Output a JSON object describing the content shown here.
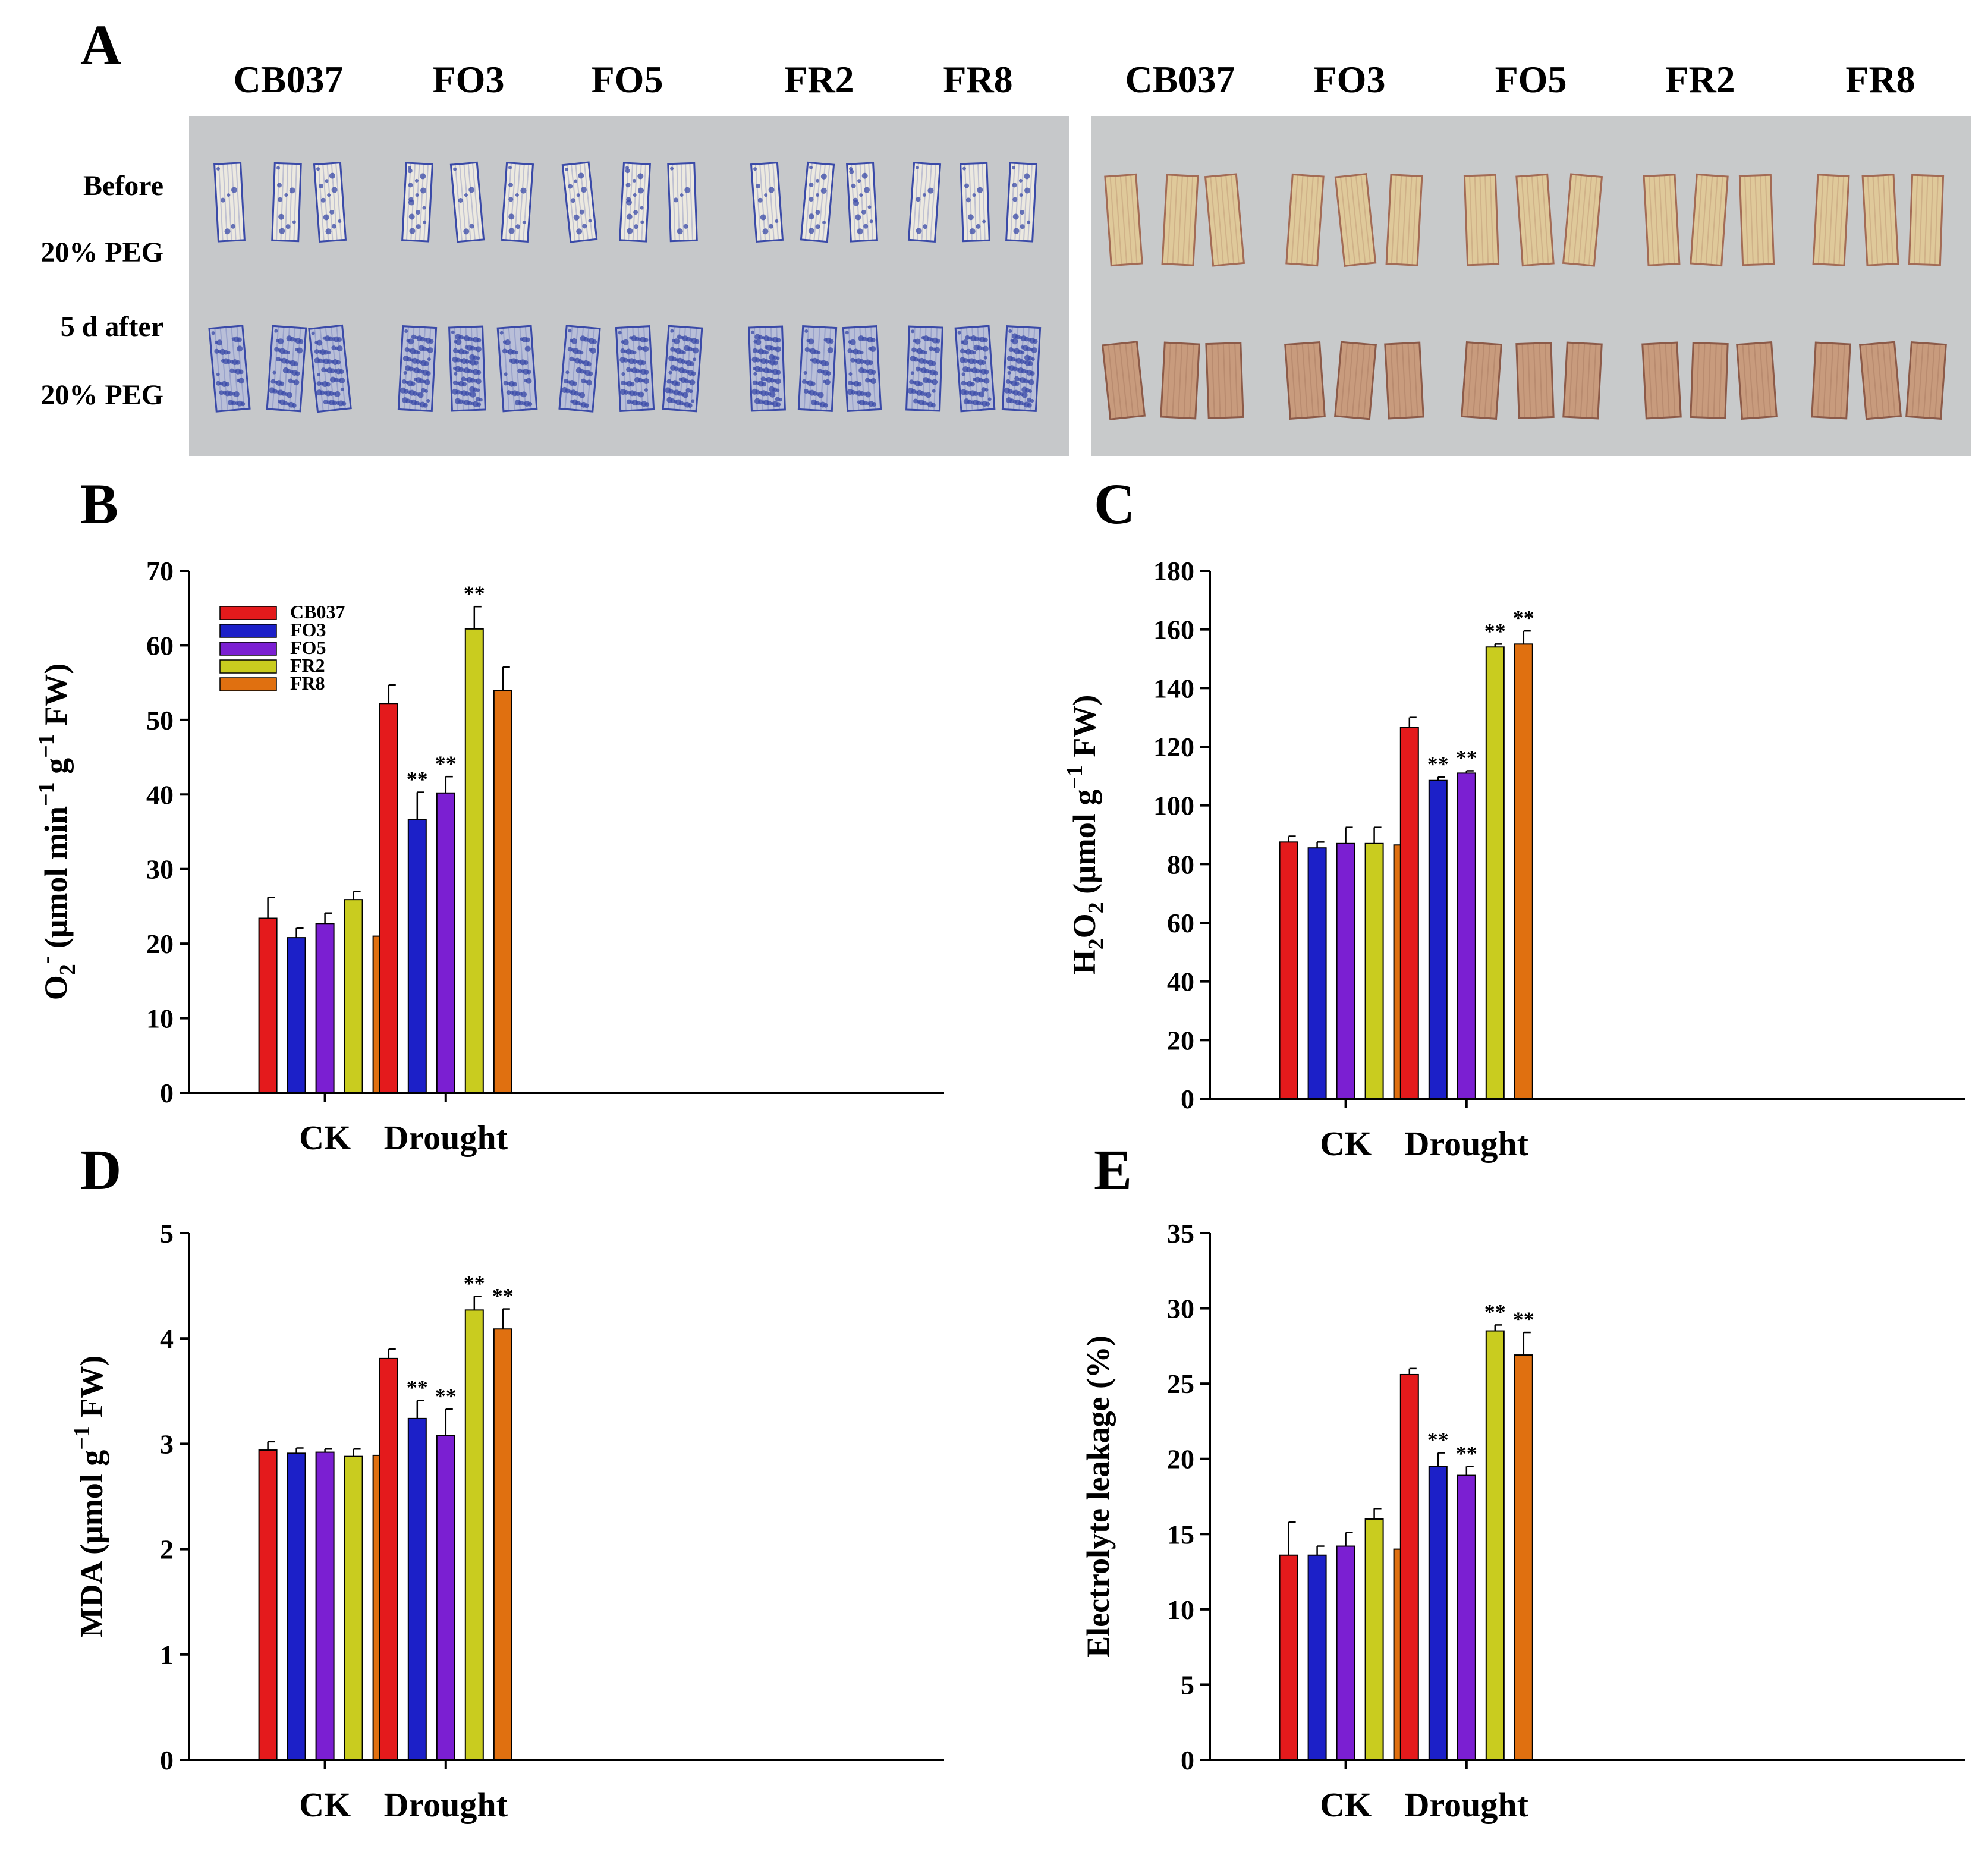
{
  "panel_a": {
    "letter": "A",
    "genotypes": [
      "CB037",
      "FO3",
      "FO5",
      "FR2",
      "FR8"
    ],
    "row_labels": [
      "Before",
      "20% PEG",
      "5 d after",
      "20% PEG"
    ],
    "colors": {
      "background": "#c6c8ca",
      "nbt_stain": "#3a4aa8",
      "nbt_leaf": "#ece9e0",
      "dab_leaf_before": "#dfc99a",
      "dab_leaf_after": "#c89b7d"
    }
  },
  "series_names": [
    "CB037",
    "FO3",
    "FO5",
    "FR2",
    "FR8"
  ],
  "series_colors": [
    "#e41a1c",
    "#1c20c8",
    "#7b1fd2",
    "#c9cc1f",
    "#e07010"
  ],
  "categories": [
    "CK",
    "Drought"
  ],
  "chart_data": [
    {
      "letter": "B",
      "type": "bar",
      "ylabel_parts": [
        "O",
        "2",
        "-",
        " (μmol min",
        "−1",
        " g",
        "−1",
        " FW)"
      ],
      "ylim": [
        0,
        70
      ],
      "yticks": [
        "0",
        "10",
        "20",
        "30",
        "40",
        "50",
        "60",
        "70"
      ],
      "legend": true,
      "legend_position": "top-left",
      "categories": [
        "CK",
        "Drought"
      ],
      "series": [
        {
          "name": "CB037",
          "values": [
            23.4,
            52.2
          ],
          "errors": [
            2.8,
            2.5
          ],
          "sig": [
            "",
            ""
          ]
        },
        {
          "name": "FO3",
          "values": [
            20.8,
            36.6
          ],
          "errors": [
            1.3,
            3.7
          ],
          "sig": [
            "",
            "**"
          ]
        },
        {
          "name": "FO5",
          "values": [
            22.7,
            40.2
          ],
          "errors": [
            1.4,
            2.2
          ],
          "sig": [
            "",
            "**"
          ]
        },
        {
          "name": "FR2",
          "values": [
            25.9,
            62.2
          ],
          "errors": [
            1.1,
            3.0
          ],
          "sig": [
            "",
            "**"
          ]
        },
        {
          "name": "FR8",
          "values": [
            21.0,
            53.9
          ],
          "errors": [
            2.4,
            3.2
          ],
          "sig": [
            "",
            ""
          ]
        }
      ]
    },
    {
      "letter": "C",
      "type": "bar",
      "ylabel_parts": [
        "H",
        "2",
        "",
        "O",
        "2",
        "",
        " (μmol g",
        "−1",
        " FW)"
      ],
      "ylim": [
        0,
        180
      ],
      "yticks": [
        "0",
        "20",
        "40",
        "60",
        "80",
        "100",
        "120",
        "140",
        "160",
        "180"
      ],
      "legend": false,
      "categories": [
        "CK",
        "Drought"
      ],
      "series": [
        {
          "name": "CB037",
          "values": [
            87.5,
            126.5
          ],
          "errors": [
            2.0,
            3.5
          ],
          "sig": [
            "",
            ""
          ]
        },
        {
          "name": "FO3",
          "values": [
            85.5,
            108.5
          ],
          "errors": [
            2.0,
            1.2
          ],
          "sig": [
            "",
            "**"
          ]
        },
        {
          "name": "FO5",
          "values": [
            87.0,
            111.0
          ],
          "errors": [
            5.5,
            0.8
          ],
          "sig": [
            "",
            "**"
          ]
        },
        {
          "name": "FR2",
          "values": [
            87.0,
            154.0
          ],
          "errors": [
            5.5,
            1.0
          ],
          "sig": [
            "",
            "**"
          ]
        },
        {
          "name": "FR8",
          "values": [
            86.5,
            155.0
          ],
          "errors": [
            1.5,
            4.5
          ],
          "sig": [
            "",
            "**"
          ]
        }
      ]
    },
    {
      "letter": "D",
      "type": "bar",
      "ylabel_parts": [
        "MDA (μmol g",
        "−1",
        " FW)"
      ],
      "ylim": [
        0,
        5
      ],
      "yticks": [
        "0",
        "1",
        "2",
        "3",
        "4",
        "5"
      ],
      "legend": false,
      "categories": [
        "CK",
        "Drought"
      ],
      "series": [
        {
          "name": "CB037",
          "values": [
            2.94,
            3.81
          ],
          "errors": [
            0.08,
            0.09
          ],
          "sig": [
            "",
            ""
          ]
        },
        {
          "name": "FO3",
          "values": [
            2.91,
            3.24
          ],
          "errors": [
            0.05,
            0.17
          ],
          "sig": [
            "",
            "**"
          ]
        },
        {
          "name": "FO5",
          "values": [
            2.92,
            3.08
          ],
          "errors": [
            0.03,
            0.25
          ],
          "sig": [
            "",
            "**"
          ]
        },
        {
          "name": "FR2",
          "values": [
            2.88,
            4.27
          ],
          "errors": [
            0.07,
            0.13
          ],
          "sig": [
            "",
            "**"
          ]
        },
        {
          "name": "FR8",
          "values": [
            2.89,
            4.09
          ],
          "errors": [
            0.06,
            0.19
          ],
          "sig": [
            "",
            "**"
          ]
        }
      ]
    },
    {
      "letter": "E",
      "type": "bar",
      "ylabel_parts": [
        "Electrolyte leakage (%)"
      ],
      "ylim": [
        0,
        35
      ],
      "yticks": [
        "0",
        "5",
        "10",
        "15",
        "20",
        "25",
        "30",
        "35"
      ],
      "legend": false,
      "categories": [
        "CK",
        "Drought"
      ],
      "series": [
        {
          "name": "CB037",
          "values": [
            13.6,
            25.6
          ],
          "errors": [
            2.2,
            0.4
          ],
          "sig": [
            "",
            ""
          ]
        },
        {
          "name": "FO3",
          "values": [
            13.6,
            19.5
          ],
          "errors": [
            0.6,
            0.9
          ],
          "sig": [
            "",
            "**"
          ]
        },
        {
          "name": "FO5",
          "values": [
            14.2,
            18.9
          ],
          "errors": [
            0.9,
            0.6
          ],
          "sig": [
            "",
            "**"
          ]
        },
        {
          "name": "FR2",
          "values": [
            16.0,
            28.5
          ],
          "errors": [
            0.7,
            0.4
          ],
          "sig": [
            "",
            "**"
          ]
        },
        {
          "name": "FR8",
          "values": [
            14.0,
            26.9
          ],
          "errors": [
            0.5,
            1.5
          ],
          "sig": [
            "",
            "**"
          ]
        }
      ]
    }
  ]
}
